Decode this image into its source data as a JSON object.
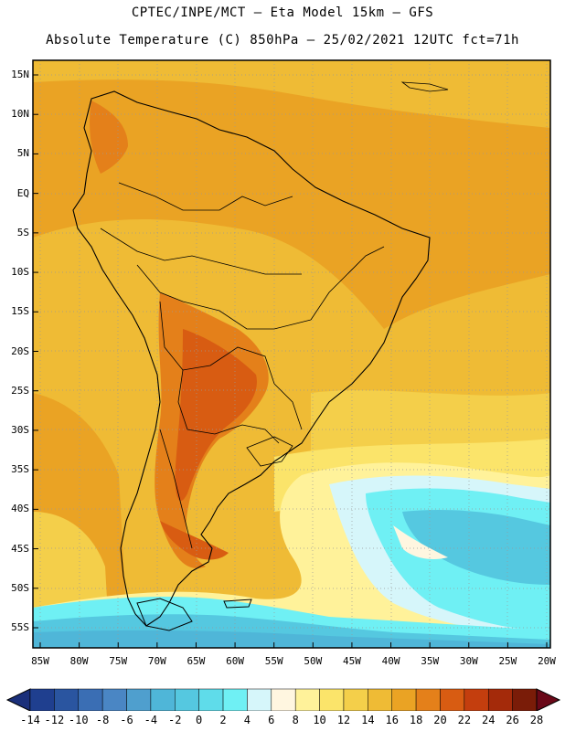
{
  "header": {
    "line1": "CPTEC/INPE/MCT –  Eta Model 15km – GFS",
    "line2": "Absolute Temperature (C) 850hPa – 25/02/2021 12UTC fct=71h"
  },
  "map": {
    "lat_labels": [
      "15N",
      "10N",
      "5N",
      "EQ",
      "5S",
      "10S",
      "15S",
      "20S",
      "25S",
      "30S",
      "35S",
      "40S",
      "45S",
      "50S",
      "55S"
    ],
    "lat_values": [
      15,
      10,
      5,
      0,
      -5,
      -10,
      -15,
      -20,
      -25,
      -30,
      -35,
      -40,
      -45,
      -50,
      -55
    ],
    "lon_labels": [
      "85W",
      "80W",
      "75W",
      "70W",
      "65W",
      "60W",
      "55W",
      "50W",
      "45W",
      "40W",
      "35W",
      "30W",
      "25W",
      "20W"
    ],
    "lon_values": [
      -85,
      -80,
      -75,
      -70,
      -65,
      -60,
      -55,
      -50,
      -45,
      -40,
      -35,
      -30,
      -25,
      -20
    ]
  },
  "colorbar": {
    "labels": [
      "-14",
      "-12",
      "-10",
      "-8",
      "-6",
      "-4",
      "-2",
      "0",
      "2",
      "4",
      "6",
      "8",
      "10",
      "12",
      "14",
      "16",
      "18",
      "20",
      "22",
      "24",
      "26",
      "28"
    ],
    "colors": [
      "#1f3f8f",
      "#2a55a0",
      "#3a6eb4",
      "#4a86c4",
      "#4f9fce",
      "#4fb6d8",
      "#55c8e0",
      "#5fdcea",
      "#6ff0f4",
      "#d6f6fa",
      "#fff6e0",
      "#fff29a",
      "#fbe46a",
      "#f4cf4a",
      "#efbb35",
      "#eaa324",
      "#e4801a",
      "#d85c12",
      "#c43e0e",
      "#a42a0a",
      "#7a1c08"
    ],
    "min_color": "#1a2f7a",
    "max_color": "#6a0818"
  }
}
